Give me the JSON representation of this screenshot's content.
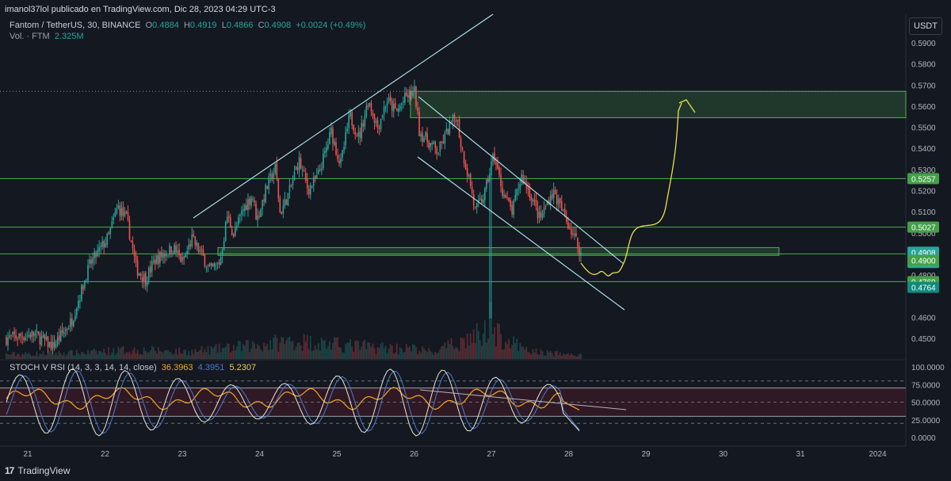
{
  "header": {
    "published": "imanol37lol publicado en TradingView.com, Dic 28, 2023 04:29 UTC-3",
    "symbol": "Fantom / TetherUS, 30, BINANCE",
    "o_label": "O",
    "o": "0.4884",
    "h_label": "H",
    "h": "0.4919",
    "l_label": "L",
    "l": "0.4866",
    "c_label": "C",
    "c": "0.4908",
    "change": "+0.0024 (+0.49%)",
    "vol_label": "Vol. · FTM",
    "vol_value": "2.325M"
  },
  "currency_button": "USDT",
  "stoch": {
    "label": "STOCH V RSI (14, 3, 3, 14, 14, close)",
    "v1": "36.3963",
    "v2": "4.3951",
    "v3": "5.2307"
  },
  "branding": "TradingView",
  "colors": {
    "up": "#26a69a",
    "down": "#ef5350",
    "zone": "#4caf50",
    "drawing": "#e6e44a",
    "trend": "#b2ebf2",
    "stoch_k": "#e6d24a",
    "stoch_d": "#4a7bd0",
    "vrsi": "#f5a623"
  },
  "chart_data": {
    "type": "candlestick",
    "title": "Fantom / TetherUS, 30, BINANCE",
    "x_ticks": [
      "21",
      "22",
      "23",
      "24",
      "25",
      "26",
      "27",
      "28",
      "29",
      "30",
      "31",
      "2024"
    ],
    "y_ticks": [
      "0.5900",
      "0.5800",
      "0.5700",
      "0.5600",
      "0.5500",
      "0.5400",
      "0.5300",
      "0.5200",
      "0.5100",
      "0.5000",
      "0.4800",
      "0.4600",
      "0.4500"
    ],
    "ylim": [
      0.4435,
      0.597
    ],
    "price_path": [
      [
        0,
        0.45
      ],
      [
        3,
        0.452
      ],
      [
        5,
        0.446
      ],
      [
        7,
        0.458
      ],
      [
        9,
        0.485
      ],
      [
        11,
        0.498
      ],
      [
        12,
        0.5125
      ],
      [
        13,
        0.506
      ],
      [
        14,
        0.483
      ],
      [
        15,
        0.478
      ],
      [
        16,
        0.487
      ],
      [
        18,
        0.493
      ],
      [
        19,
        0.486
      ],
      [
        20,
        0.497
      ],
      [
        21,
        0.49
      ],
      [
        22,
        0.482
      ],
      [
        23,
        0.486
      ],
      [
        23.8,
        0.508
      ],
      [
        24.5,
        0.499
      ],
      [
        25.5,
        0.511
      ],
      [
        26.5,
        0.518
      ],
      [
        27,
        0.506
      ],
      [
        28,
        0.521
      ],
      [
        29,
        0.531
      ],
      [
        29.5,
        0.509
      ],
      [
        30.5,
        0.5195
      ],
      [
        31.5,
        0.5345
      ],
      [
        32.5,
        0.5205
      ],
      [
        33.5,
        0.526
      ],
      [
        34.5,
        0.54
      ],
      [
        35,
        0.548
      ],
      [
        36,
        0.532
      ],
      [
        37,
        0.5555
      ],
      [
        38,
        0.545
      ],
      [
        39,
        0.563
      ],
      [
        40,
        0.55
      ],
      [
        41,
        0.563
      ],
      [
        42,
        0.557
      ],
      [
        43,
        0.564
      ],
      [
        44,
        0.567
      ],
      [
        44.5,
        0.548
      ],
      [
        45.5,
        0.543
      ],
      [
        46.5,
        0.538
      ],
      [
        47.5,
        0.548
      ],
      [
        48.5,
        0.556
      ],
      [
        49,
        0.541
      ],
      [
        50,
        0.523
      ],
      [
        50.5,
        0.51
      ],
      [
        51.5,
        0.518
      ],
      [
        52.5,
        0.537
      ],
      [
        53.5,
        0.519
      ],
      [
        54.5,
        0.51
      ],
      [
        55.5,
        0.527
      ],
      [
        56.5,
        0.518
      ],
      [
        57.5,
        0.506
      ],
      [
        58.5,
        0.517
      ],
      [
        59,
        0.519
      ],
      [
        60,
        0.509
      ],
      [
        61,
        0.5
      ],
      [
        61.9,
        0.4908
      ]
    ],
    "horizontal_levels": [
      "0.5257",
      "0.5027",
      "0.4900",
      "0.4769"
    ],
    "resistance_zone": [
      "0.5545",
      "0.5670"
    ],
    "support_zone": [
      "0.4893",
      "0.4930"
    ],
    "price_labels": [
      {
        "value": "0.5257",
        "kind": "level"
      },
      {
        "value": "0.5027",
        "kind": "level"
      },
      {
        "value": "0.4908",
        "kind": "last"
      },
      {
        "value": "00:03",
        "kind": "timer"
      },
      {
        "value": "0.4900",
        "kind": "level"
      },
      {
        "value": "0.4769",
        "kind": "level"
      },
      {
        "value": "0.4764",
        "kind": "prev"
      }
    ],
    "volume_scale": [
      0,
      1
    ],
    "volume_path": [
      [
        0,
        0.1
      ],
      [
        9,
        0.14
      ],
      [
        13,
        0.2
      ],
      [
        20,
        0.16
      ],
      [
        26,
        0.28
      ],
      [
        31,
        0.4
      ],
      [
        36,
        0.3
      ],
      [
        44,
        0.22
      ],
      [
        46,
        0.14
      ],
      [
        52,
        0.62
      ],
      [
        56,
        0.18
      ],
      [
        59,
        0.12
      ],
      [
        61.9,
        0.08
      ]
    ],
    "stoch_rsi": {
      "y_ticks": [
        "100.0000",
        "75.0000",
        "50.0000",
        "25.0000",
        "0.0000"
      ],
      "ylim": [
        0,
        100
      ],
      "upper_band": 80,
      "lower_band": 20,
      "last": {
        "k": 4.3951,
        "d": 5.2307,
        "vrsi": 36.3963
      }
    }
  }
}
